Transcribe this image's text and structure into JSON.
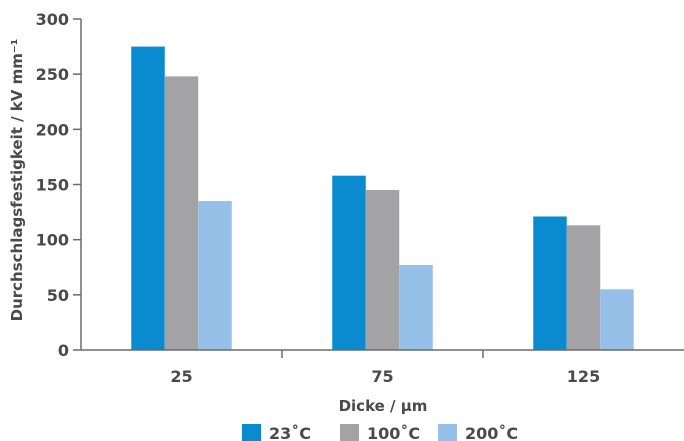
{
  "chart_data": {
    "type": "bar",
    "categories": [
      "25",
      "75",
      "125"
    ],
    "series": [
      {
        "name": "23˚C",
        "color": "#0a8bd0",
        "values": [
          275,
          158,
          121
        ]
      },
      {
        "name": "100˚C",
        "color": "#a3a3a6",
        "values": [
          248,
          145,
          113
        ]
      },
      {
        "name": "200˚C",
        "color": "#96c0e7",
        "values": [
          135,
          77,
          55
        ]
      }
    ],
    "title": "",
    "xlabel": "Dicke / µm",
    "ylabel": "Durchschlagsfestigkeit / kV mm⁻¹",
    "ylim": [
      0,
      300
    ],
    "yticks": [
      "0",
      "50",
      "100",
      "150",
      "200",
      "250",
      "300"
    ],
    "grid": false,
    "legend_position": "bottom"
  }
}
